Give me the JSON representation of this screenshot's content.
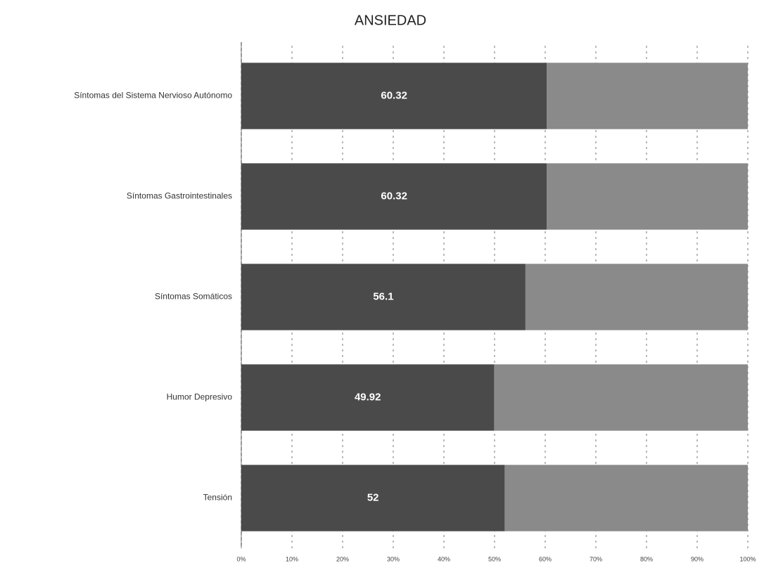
{
  "chart_data": {
    "type": "stacked-bar-horizontal",
    "title": "ANSIEDAD",
    "categories": [
      "Síntomas del Sistema Nervioso Autónomo",
      "Síntomas Gastrointestinales",
      "Síntomas Somáticos",
      "Humor Depresivo",
      "Tensión"
    ],
    "series": [
      {
        "color": "#4a4a4a",
        "values": [
          60.32,
          60.32,
          56.1,
          49.92,
          52
        ]
      },
      {
        "color": "#8a8a8a",
        "values": [
          39.68,
          39.68,
          43.9,
          50.08,
          48
        ]
      }
    ],
    "data_labels_series": 0,
    "xlim": [
      0,
      100
    ],
    "xticks": [
      {
        "value": 0,
        "label": "0%"
      },
      {
        "value": 10,
        "label": "10%"
      },
      {
        "value": 20,
        "label": "20%"
      },
      {
        "value": 30,
        "label": "30%"
      },
      {
        "value": 40,
        "label": "40%"
      },
      {
        "value": 50,
        "label": "50%"
      },
      {
        "value": 60,
        "label": "60%"
      },
      {
        "value": 70,
        "label": "70%"
      },
      {
        "value": 80,
        "label": "80%"
      },
      {
        "value": 90,
        "label": "90%"
      },
      {
        "value": 100,
        "label": "100%"
      }
    ],
    "grid": true
  }
}
